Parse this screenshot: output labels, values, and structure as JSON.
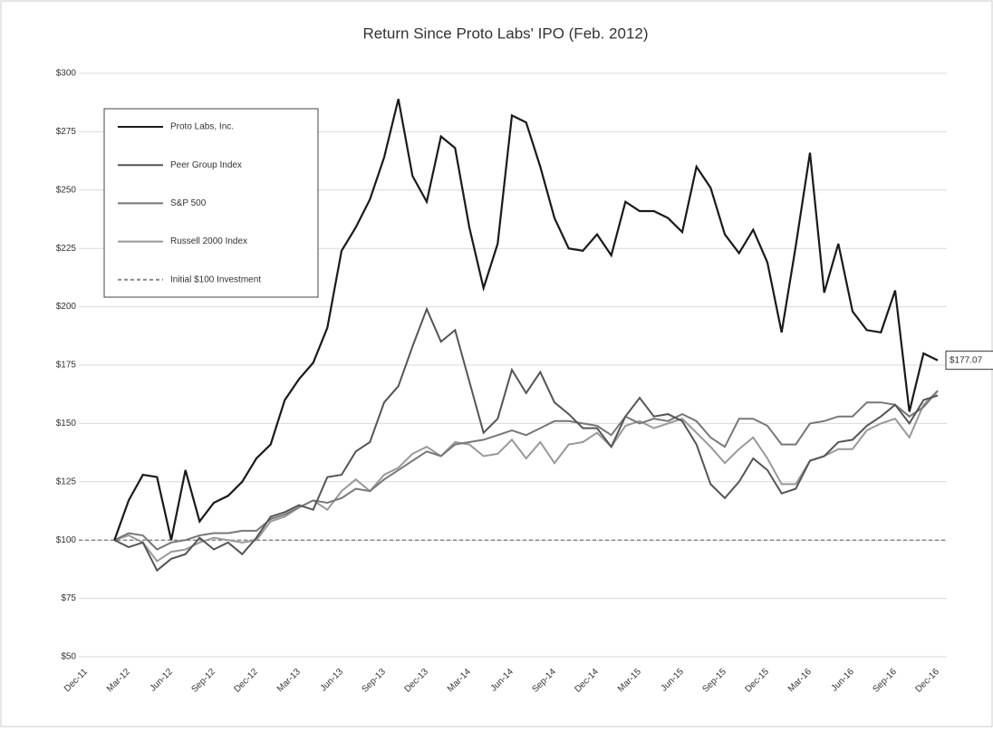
{
  "chart_data": {
    "type": "line",
    "title": "Return Since Proto Labs' IPO (Feb. 2012)",
    "categories": [
      "Dec-11",
      null,
      null,
      "Mar-12",
      null,
      null,
      "Jun-12",
      null,
      null,
      "Sep-12",
      null,
      null,
      "Dec-12",
      null,
      null,
      "Mar-13",
      null,
      null,
      "Jun-13",
      null,
      null,
      "Sep-13",
      null,
      null,
      "Dec-13",
      null,
      null,
      "Mar-14",
      null,
      null,
      "Jun-14",
      null,
      null,
      "Sep-14",
      null,
      null,
      "Dec-14",
      null,
      null,
      "Mar-15",
      null,
      null,
      "Jun-15",
      null,
      null,
      "Sep-15",
      null,
      null,
      "Dec-15",
      null,
      null,
      "Mar-16",
      null,
      null,
      "Jun-16",
      null,
      null,
      "Sep-16",
      null,
      null,
      "Dec-16"
    ],
    "series": [
      {
        "name": "Proto Labs, Inc.",
        "color": "#1a1a1a",
        "values": [
          null,
          null,
          100,
          117,
          128,
          127,
          100,
          130,
          108,
          116,
          119,
          125,
          135,
          141,
          160,
          169,
          176,
          191,
          224,
          234,
          246,
          264,
          289,
          256,
          245,
          273,
          268,
          234,
          208,
          227,
          282,
          279,
          260,
          238,
          225,
          224,
          231,
          222,
          245,
          241,
          241,
          238,
          232,
          260,
          251,
          231,
          223,
          233,
          219,
          189,
          226,
          266,
          206,
          227,
          198,
          190,
          189,
          207,
          155,
          180,
          177.07
        ],
        "last_value_label": "$177.07"
      },
      {
        "name": "Peer Group Index",
        "color": "#555555",
        "values": [
          null,
          null,
          100,
          97,
          99,
          87,
          92,
          94,
          101,
          96,
          99,
          94,
          101,
          110,
          112,
          115,
          113,
          127,
          128,
          138,
          142,
          159,
          166,
          183,
          199,
          185,
          190,
          168,
          146,
          152,
          173,
          163,
          172,
          159,
          154,
          148,
          148,
          140,
          153,
          161,
          153,
          154,
          151,
          141,
          124,
          118,
          125,
          135,
          130,
          120,
          122,
          134,
          136,
          142,
          143,
          149,
          153,
          158,
          150,
          160,
          162
        ]
      },
      {
        "name": "S&P 500",
        "color": "#777777",
        "values": [
          null,
          null,
          100,
          103,
          102,
          96,
          99,
          100,
          102,
          103,
          103,
          104,
          104,
          109,
          111,
          114,
          117,
          116,
          118,
          122,
          121,
          126,
          130,
          134,
          138,
          136,
          141,
          142,
          143,
          145,
          147,
          145,
          148,
          151,
          151,
          150,
          149,
          145,
          153,
          150,
          152,
          151,
          154,
          151,
          144,
          140,
          152,
          152,
          149,
          141,
          141,
          150,
          151,
          153,
          153,
          159,
          159,
          158,
          153,
          157,
          164
        ]
      },
      {
        "name": "Russell 2000 Index",
        "color": "#999999",
        "values": [
          null,
          null,
          100,
          102,
          99,
          91,
          95,
          96,
          99,
          101,
          100,
          99,
          100,
          108,
          110,
          114,
          117,
          113,
          121,
          126,
          121,
          128,
          131,
          137,
          140,
          136,
          142,
          141,
          136,
          137,
          143,
          135,
          142,
          133,
          141,
          142,
          146,
          140,
          149,
          151,
          148,
          150,
          152,
          146,
          140,
          133,
          139,
          144,
          135,
          124,
          124,
          134,
          136,
          139,
          139,
          147,
          150,
          152,
          144,
          158,
          164
        ]
      }
    ],
    "reference_line": {
      "name": "Initial $100 Investment",
      "value": 100,
      "color": "#888888",
      "style": "dashed"
    },
    "ylim": [
      50,
      300
    ],
    "yticks": [
      {
        "value": 50,
        "label": "$50"
      },
      {
        "value": 75,
        "label": "$75"
      },
      {
        "value": 100,
        "label": "$100"
      },
      {
        "value": 125,
        "label": "$125"
      },
      {
        "value": 150,
        "label": "$150"
      },
      {
        "value": 175,
        "label": "$175"
      },
      {
        "value": 200,
        "label": "$200"
      },
      {
        "value": 225,
        "label": "$225"
      },
      {
        "value": 250,
        "label": "$250"
      },
      {
        "value": 275,
        "label": "$275"
      },
      {
        "value": 300,
        "label": "$300"
      }
    ],
    "grid": true,
    "legend": "upper left"
  }
}
